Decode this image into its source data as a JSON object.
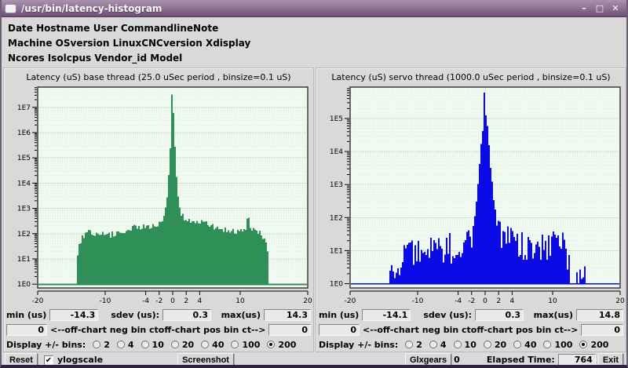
{
  "window": {
    "title": "/usr/bin/latency-histogram",
    "controls": {
      "minimize": "–",
      "maximize": "□",
      "close": "✕"
    }
  },
  "info_rows": [
    "Date Hostname User CommandlineNote",
    "Machine  OSversion  LinuxCNCversion  Xdisplay",
    "Ncores  Isolcpus  Vendor_id  Model"
  ],
  "panel_labels": {
    "min": "min (us)",
    "sdev": "sdev (us):",
    "max": "max(us)",
    "neg": "<--off-chart neg bin ct",
    "pos": "off-chart pos bin ct-->",
    "display_bins": "Display +/- bins:"
  },
  "bottom": {
    "reset": "Reset",
    "ylogscale": "ylogscale",
    "ylogscale_checked": "✔",
    "screenshot": "Screenshot",
    "glxgears": "Glxgears",
    "glxgears_value": "0",
    "elapsed_label": "Elapsed Time:",
    "elapsed_value": "764",
    "exit": "Exit"
  },
  "chart_data": [
    {
      "type": "bar",
      "title": "Latency (uS) base thread (25.0 uSec period , binsize=0.1 uS)",
      "color": "#2e8f57",
      "plot_bg": "#f1faf1",
      "grid_major": "#b2ccb4",
      "grid_minor": "#d9e9d9",
      "x_axis": {
        "min": -20,
        "max": 20,
        "ticks": [
          -20,
          -10,
          -4,
          -2,
          0,
          2,
          4,
          10,
          20
        ],
        "tick_labels": [
          "-20",
          "-10",
          "-4",
          "-2",
          "0",
          "2",
          "4",
          "10",
          "20"
        ]
      },
      "y_axis": {
        "scale": "log10",
        "labels": [
          "1E0",
          "1E1",
          "1E2",
          "1E3",
          "1E4",
          "1E5",
          "1E6",
          "1E7"
        ],
        "max_decade": 7,
        "top_log": 7.8,
        "bottom_log": -0.15
      },
      "peak_log": 7.5,
      "baseline_log": 0,
      "noise": {
        "seed": 20240,
        "amp": 0.13,
        "amp_high": 0.05,
        "high_threshold": 3,
        "gap_prob": 0,
        "gap_below": 0
      },
      "envelope": [
        [
          -14.3,
          0.2
        ],
        [
          -14.1,
          1.1
        ],
        [
          -13.8,
          1.6
        ],
        [
          -13.4,
          1.85
        ],
        [
          -13.0,
          1.95
        ],
        [
          -12.3,
          2.05
        ],
        [
          -11.5,
          1.95
        ],
        [
          -10.5,
          2.0
        ],
        [
          -9.5,
          1.95
        ],
        [
          -8.5,
          2.0
        ],
        [
          -7.5,
          2.1
        ],
        [
          -6.5,
          2.2
        ],
        [
          -5.8,
          2.25
        ],
        [
          -5.2,
          2.2
        ],
        [
          -4.6,
          2.3
        ],
        [
          -4.0,
          2.25
        ],
        [
          -3.4,
          2.3
        ],
        [
          -2.8,
          2.25
        ],
        [
          -2.2,
          2.3
        ],
        [
          -1.8,
          2.4
        ],
        [
          -1.4,
          2.6
        ],
        [
          -1.1,
          2.85
        ],
        [
          -0.9,
          3.2
        ],
        [
          -0.7,
          3.8
        ],
        [
          -0.55,
          4.4
        ],
        [
          -0.4,
          5.1
        ],
        [
          -0.3,
          5.7
        ],
        [
          -0.2,
          6.3
        ],
        [
          -0.1,
          6.9
        ],
        [
          0,
          7.5
        ],
        [
          0.1,
          6.9
        ],
        [
          0.2,
          6.3
        ],
        [
          0.3,
          5.7
        ],
        [
          0.45,
          4.9
        ],
        [
          0.6,
          4.2
        ],
        [
          0.8,
          3.5
        ],
        [
          1.0,
          3.1
        ],
        [
          1.3,
          2.8
        ],
        [
          1.7,
          2.6
        ],
        [
          2.2,
          2.5
        ],
        [
          2.8,
          2.45
        ],
        [
          3.5,
          2.5
        ],
        [
          4.2,
          2.45
        ],
        [
          5.0,
          2.4
        ],
        [
          6.0,
          2.3
        ],
        [
          7.0,
          2.2
        ],
        [
          8.0,
          2.15
        ],
        [
          9.0,
          2.1
        ],
        [
          10.0,
          2.1
        ],
        [
          10.8,
          2.2
        ],
        [
          11.2,
          2.65
        ],
        [
          11.5,
          2.2
        ],
        [
          12.0,
          2.15
        ],
        [
          12.6,
          2.1
        ],
        [
          13.2,
          1.95
        ],
        [
          13.7,
          1.8
        ],
        [
          14.0,
          1.4
        ],
        [
          14.2,
          1.0
        ],
        [
          14.3,
          0.9
        ]
      ],
      "stats": {
        "min_us": "-14.3",
        "sdev_us": "0.3",
        "max_us": "14.3",
        "off_chart_neg": "0",
        "off_chart_pos": "0"
      },
      "display_bins": {
        "options": [
          "2",
          "4",
          "10",
          "20",
          "40",
          "100",
          "200"
        ],
        "selected": "200"
      }
    },
    {
      "type": "bar",
      "title": "Latency (uS) servo thread (1000.0 uSec period , binsize=0.1 uS)",
      "color": "#0b0bea",
      "plot_bg": "#f1faf1",
      "grid_major": "#b2ccb4",
      "grid_minor": "#d9e9d9",
      "x_axis": {
        "min": -20,
        "max": 20,
        "ticks": [
          -20,
          -10,
          -4,
          -2,
          0,
          2,
          4,
          10,
          20
        ],
        "tick_labels": [
          "-20",
          "-10",
          "-4",
          "-2",
          "0",
          "2",
          "4",
          "10",
          "20"
        ]
      },
      "y_axis": {
        "scale": "log10",
        "labels": [
          "1E0",
          "1E1",
          "1E2",
          "1E3",
          "1E4",
          "1E5"
        ],
        "max_decade": 5,
        "top_log": 5.95,
        "bottom_log": -0.13
      },
      "peak_log": 5.78,
      "baseline_log": 0,
      "noise": {
        "seed": 777,
        "amp": 0.45,
        "amp_high": 0.1,
        "high_threshold": 1.8,
        "gap_prob": 0.22,
        "gap_below": 0.75
      },
      "envelope": [
        [
          -14.1,
          0.3
        ],
        [
          -13.6,
          0.2
        ],
        [
          -13.2,
          0.6
        ],
        [
          -12.8,
          0.4
        ],
        [
          -12.4,
          0.8
        ],
        [
          -12.0,
          1.0
        ],
        [
          -11.5,
          0.9
        ],
        [
          -11.0,
          1.1
        ],
        [
          -10.5,
          0.9
        ],
        [
          -10.0,
          1.0
        ],
        [
          -9.5,
          1.1
        ],
        [
          -9.0,
          0.9
        ],
        [
          -8.5,
          1.0
        ],
        [
          -8.0,
          1.1
        ],
        [
          -7.5,
          1.0
        ],
        [
          -7.0,
          0.9
        ],
        [
          -6.5,
          1.1
        ],
        [
          -6.0,
          1.0
        ],
        [
          -5.5,
          1.2
        ],
        [
          -5.0,
          1.0
        ],
        [
          -4.5,
          1.2
        ],
        [
          -4.0,
          1.1
        ],
        [
          -3.5,
          1.2
        ],
        [
          -3.0,
          1.25
        ],
        [
          -2.5,
          1.3
        ],
        [
          -2.0,
          1.5
        ],
        [
          -1.7,
          1.8
        ],
        [
          -1.4,
          2.3
        ],
        [
          -1.1,
          2.9
        ],
        [
          -0.9,
          3.4
        ],
        [
          -0.7,
          3.9
        ],
        [
          -0.5,
          4.3
        ],
        [
          -0.35,
          4.6
        ],
        [
          -0.2,
          5.0
        ],
        [
          -0.1,
          5.2
        ],
        [
          0,
          5.75
        ],
        [
          0.1,
          5.2
        ],
        [
          0.2,
          5.0
        ],
        [
          0.35,
          4.7
        ],
        [
          0.5,
          4.4
        ],
        [
          0.7,
          3.9
        ],
        [
          0.9,
          3.3
        ],
        [
          1.1,
          2.9
        ],
        [
          1.4,
          2.3
        ],
        [
          1.7,
          1.9
        ],
        [
          2.0,
          1.6
        ],
        [
          2.5,
          1.4
        ],
        [
          3.0,
          1.3
        ],
        [
          3.5,
          1.4
        ],
        [
          4.0,
          1.2
        ],
        [
          4.5,
          1.3
        ],
        [
          5.0,
          1.1
        ],
        [
          5.5,
          1.2
        ],
        [
          6.0,
          1.1
        ],
        [
          6.5,
          1.0
        ],
        [
          7.0,
          1.2
        ],
        [
          7.5,
          1.0
        ],
        [
          8.0,
          1.1
        ],
        [
          8.5,
          1.2
        ],
        [
          9.0,
          1.0
        ],
        [
          9.5,
          1.1
        ],
        [
          10.0,
          1.2
        ],
        [
          10.5,
          1.3
        ],
        [
          11.0,
          1.4
        ],
        [
          11.3,
          1.2
        ],
        [
          11.7,
          1.0
        ],
        [
          12.0,
          0.9
        ],
        [
          12.4,
          0.5
        ],
        [
          12.8,
          0.3
        ],
        [
          13.2,
          0.6
        ],
        [
          13.6,
          0.2
        ],
        [
          14.0,
          0.3
        ],
        [
          14.4,
          0.2
        ],
        [
          14.8,
          0.5
        ]
      ],
      "stats": {
        "min_us": "-14.1",
        "sdev_us": "0.3",
        "max_us": "14.8",
        "off_chart_neg": "0",
        "off_chart_pos": "0"
      },
      "display_bins": {
        "options": [
          "2",
          "4",
          "10",
          "20",
          "40",
          "100",
          "200"
        ],
        "selected": "200"
      }
    }
  ]
}
